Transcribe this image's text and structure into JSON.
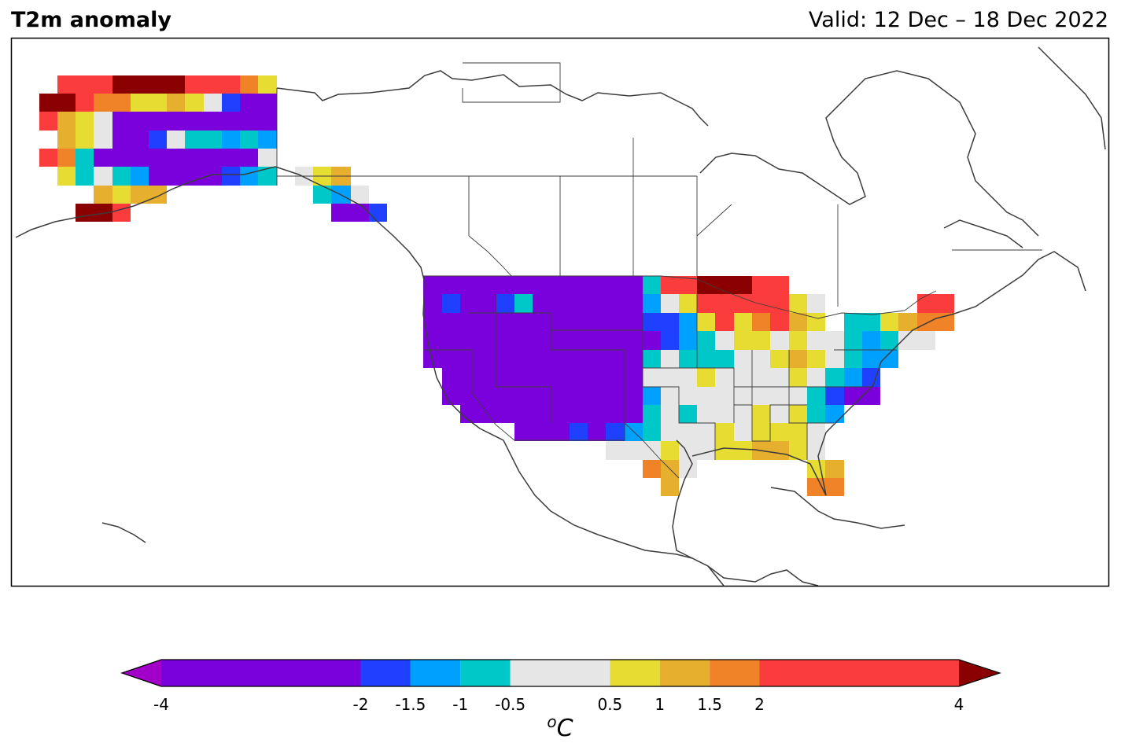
{
  "title": "T2m anomaly",
  "valid": "Valid: 12 Dec – 18 Dec 2022",
  "colorbar": {
    "unit": "oC",
    "boundaries": [
      -4,
      -2,
      -1.5,
      -1,
      -0.5,
      0.5,
      1,
      1.5,
      2,
      4
    ],
    "tick_labels": [
      "-4",
      "-2",
      "-1.5",
      "-1",
      "-0.5",
      "0.5",
      "1",
      "1.5",
      "2",
      "4"
    ],
    "colors": [
      "#7a00dc",
      "#2040ff",
      "#00a0ff",
      "#00c8c8",
      "#e6e6e6",
      "#e6dc32",
      "#e6af2d",
      "#f08228",
      "#fa3c3c"
    ],
    "under_color": "#a000c8",
    "over_color": "#8b0000"
  }
}
